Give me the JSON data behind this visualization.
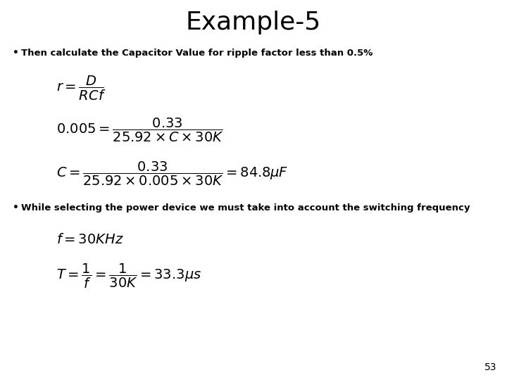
{
  "title": "Example-5",
  "title_fontsize": 26,
  "bg_color": "#ffffff",
  "text_color": "#000000",
  "bullet1": "Then calculate the Capacitor Value for ripple factor less than 0.5%",
  "bullet2": "While selecting the power device we must take into account the switching frequency",
  "page_number": "53",
  "eq1": "$r = \\dfrac{D}{RCf}$",
  "eq2": "$0.005 = \\dfrac{0.33}{25.92 \\times C \\times 30K}$",
  "eq3": "$C = \\dfrac{0.33}{25.92 \\times 0.005 \\times 30K} = 84.8\\mu F$",
  "eq4": "$f = 30KHz$",
  "eq5": "$T = \\dfrac{1}{f} = \\dfrac{1}{30K} = 33.3\\mu s$",
  "eq_fontsize": 14,
  "bullet_fontsize": 9.5
}
